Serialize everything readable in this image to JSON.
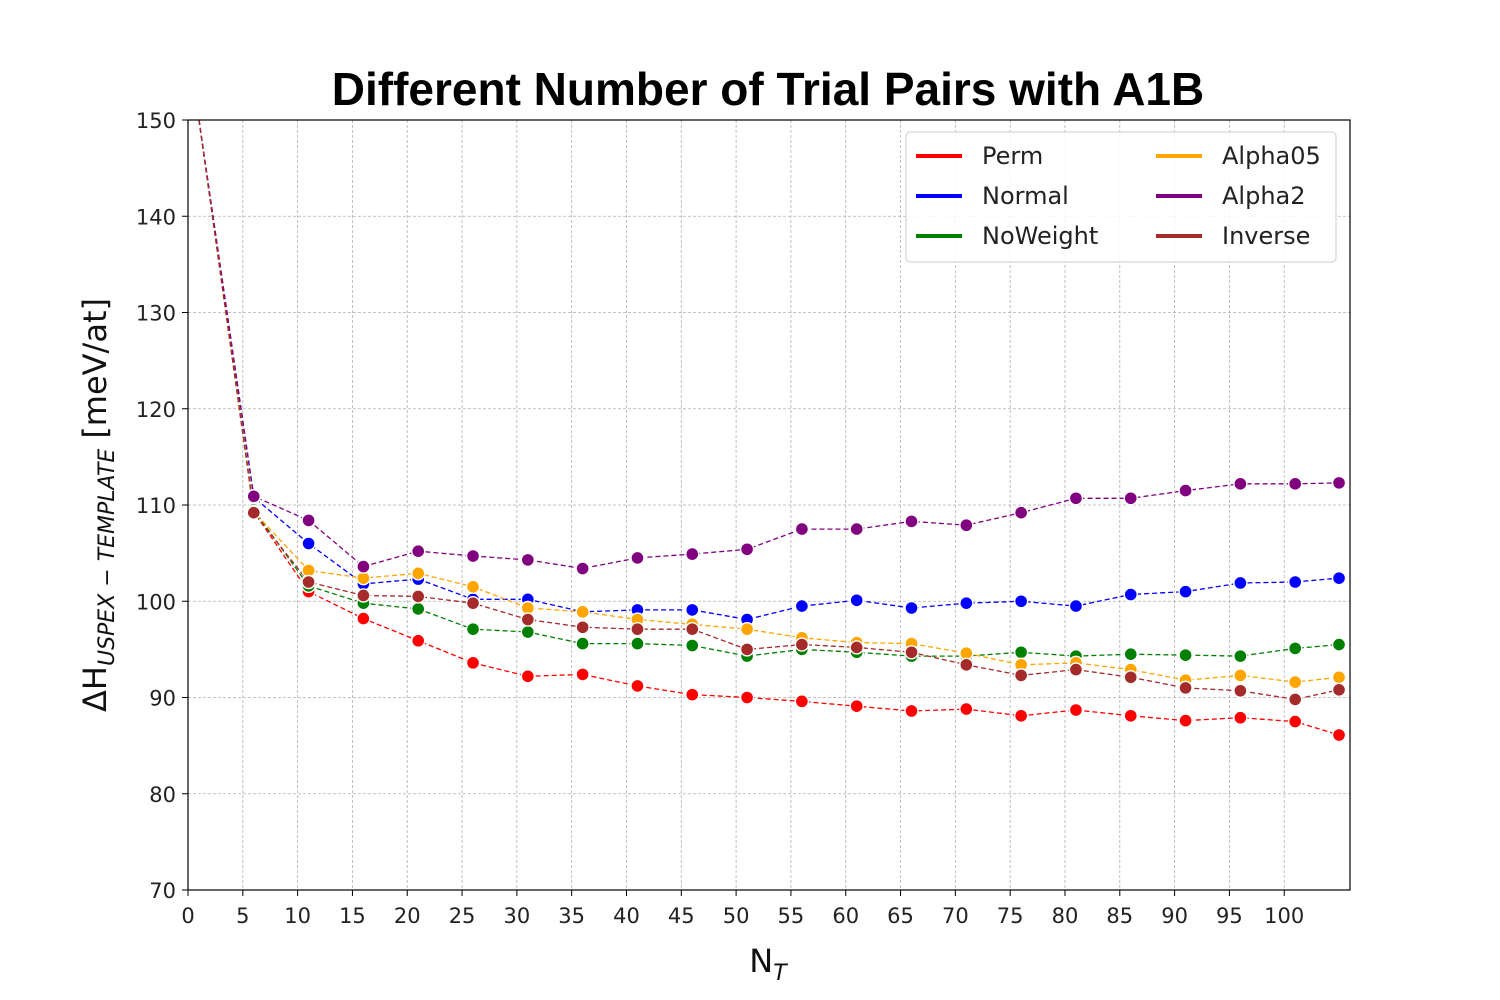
{
  "chart_data": {
    "type": "line",
    "title": "Different Number of Trial Pairs with A1B",
    "xlabel": "N",
    "xlabel_sub": "T",
    "ylabel": "ΔH",
    "ylabel_sub": "USPEX − TEMPLATE",
    "ylabel_unit": "[meV/at]",
    "xlim": [
      0,
      106
    ],
    "ylim": [
      70,
      150
    ],
    "xticks": [
      0,
      5,
      10,
      15,
      20,
      25,
      30,
      35,
      40,
      45,
      50,
      55,
      60,
      65,
      70,
      75,
      80,
      85,
      90,
      95,
      100
    ],
    "yticks": [
      70,
      80,
      90,
      100,
      110,
      120,
      130,
      140,
      150
    ],
    "grid": true,
    "legend_position": "top-right",
    "x": [
      6,
      11,
      16,
      21,
      26,
      31,
      36,
      41,
      46,
      51,
      56,
      61,
      66,
      71,
      76,
      81,
      86,
      91,
      96,
      101,
      105
    ],
    "start_point": {
      "x": 1,
      "y": 150
    },
    "series": [
      {
        "name": "Perm",
        "color": "#ff0000",
        "values": [
          109.3,
          101.0,
          98.2,
          95.9,
          93.6,
          92.2,
          92.4,
          91.2,
          90.3,
          90.0,
          89.6,
          89.1,
          88.6,
          88.8,
          88.1,
          88.7,
          88.1,
          87.6,
          87.9,
          87.5,
          86.1
        ]
      },
      {
        "name": "Normal",
        "color": "#0000ff",
        "values": [
          110.8,
          106.0,
          101.8,
          102.3,
          100.2,
          100.2,
          98.9,
          99.1,
          99.1,
          98.1,
          99.5,
          100.1,
          99.3,
          99.8,
          100.0,
          99.5,
          100.7,
          101.0,
          101.9,
          102.0,
          102.4
        ]
      },
      {
        "name": "NoWeight",
        "color": "#008000",
        "values": [
          109.5,
          101.6,
          99.8,
          99.2,
          97.1,
          96.8,
          95.6,
          95.6,
          95.4,
          94.3,
          95.0,
          94.7,
          94.3,
          94.3,
          94.7,
          94.3,
          94.5,
          94.4,
          94.3,
          95.1,
          95.5
        ]
      },
      {
        "name": "Alpha05",
        "color": "#ffa500",
        "values": [
          109.3,
          103.2,
          102.4,
          102.9,
          101.5,
          99.3,
          98.9,
          98.1,
          97.6,
          97.1,
          96.2,
          95.7,
          95.6,
          94.6,
          93.4,
          93.6,
          92.9,
          91.8,
          92.3,
          91.6,
          92.1
        ]
      },
      {
        "name": "Alpha2",
        "color": "#800080",
        "values": [
          110.9,
          108.4,
          103.6,
          105.2,
          104.7,
          104.3,
          103.4,
          104.5,
          104.9,
          105.4,
          107.5,
          107.5,
          108.3,
          107.9,
          109.2,
          110.7,
          110.7,
          111.5,
          112.2,
          112.2,
          112.3
        ]
      },
      {
        "name": "Inverse",
        "color": "#a52a2a",
        "values": [
          109.2,
          102.0,
          100.6,
          100.5,
          99.8,
          98.1,
          97.3,
          97.1,
          97.1,
          95.0,
          95.5,
          95.2,
          94.7,
          93.4,
          92.3,
          92.9,
          92.1,
          91.0,
          90.7,
          89.8,
          90.8
        ]
      }
    ]
  }
}
